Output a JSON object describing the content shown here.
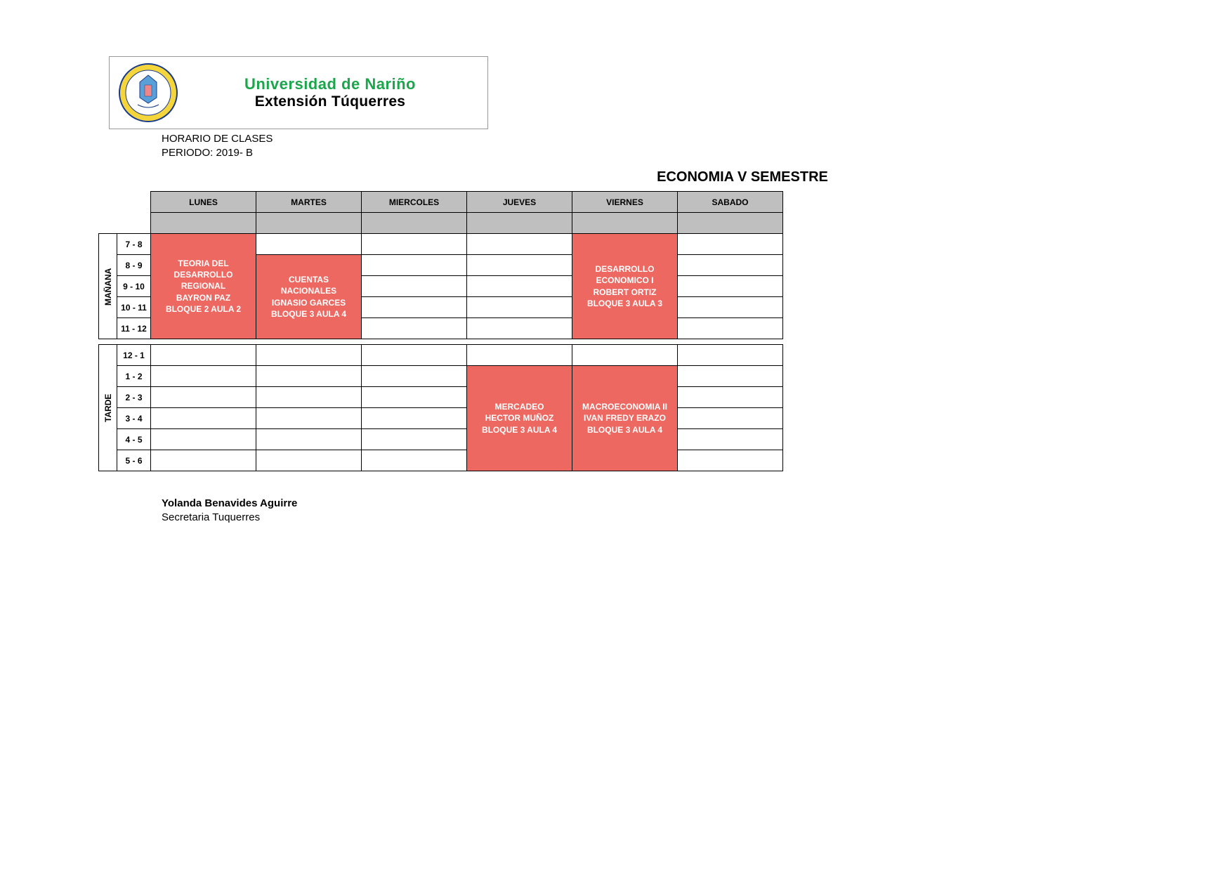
{
  "header": {
    "university": "Universidad de Nariño",
    "extension": "Extensión Túquerres",
    "schedule_label": "HORARIO DE CLASES",
    "period_label": "PERIODO: 2019- B",
    "title": "ECONOMIA V SEMESTRE"
  },
  "days": [
    "LUNES",
    "MARTES",
    "MIERCOLES",
    "JUEVES",
    "VIERNES",
    "SABADO"
  ],
  "session_labels": {
    "morning": "MAÑANA",
    "afternoon": "TARDE"
  },
  "times_morning": [
    "7 - 8",
    "8 - 9",
    "9 - 10",
    "10 - 11",
    "11 - 12"
  ],
  "times_afternoon": [
    "12 - 1",
    "1 - 2",
    "2 - 3",
    "3 - 4",
    "4 - 5",
    "5 - 6"
  ],
  "classes": {
    "teoria": "TEORIA DEL DESARROLLO REGIONAL\nBAYRON PAZ\nBLOQUE 2 AULA 2",
    "cuentas": "CUENTAS NACIONALES\nIGNASIO GARCES\nBLOQUE 3 AULA 4",
    "desarrollo": "DESARROLLO ECONOMICO  I\nROBERT ORTIZ\nBLOQUE 3 AULA 3",
    "mercadeo": "MERCADEO\nHECTOR MUÑOZ\nBLOQUE 3   AULA 4",
    "macro": "MACROECONOMIA   II\nIVAN FREDY ERAZO\nBLOQUE 3   AULA 4"
  },
  "footer": {
    "name": "Yolanda Benavides Aguirre",
    "role": "Secretaria Tuquerres"
  },
  "colors": {
    "class_bg": "#ee6862",
    "class_text": "#ffffff",
    "header_bg": "#bfbfbf",
    "uni_title": "#1aa64b"
  }
}
